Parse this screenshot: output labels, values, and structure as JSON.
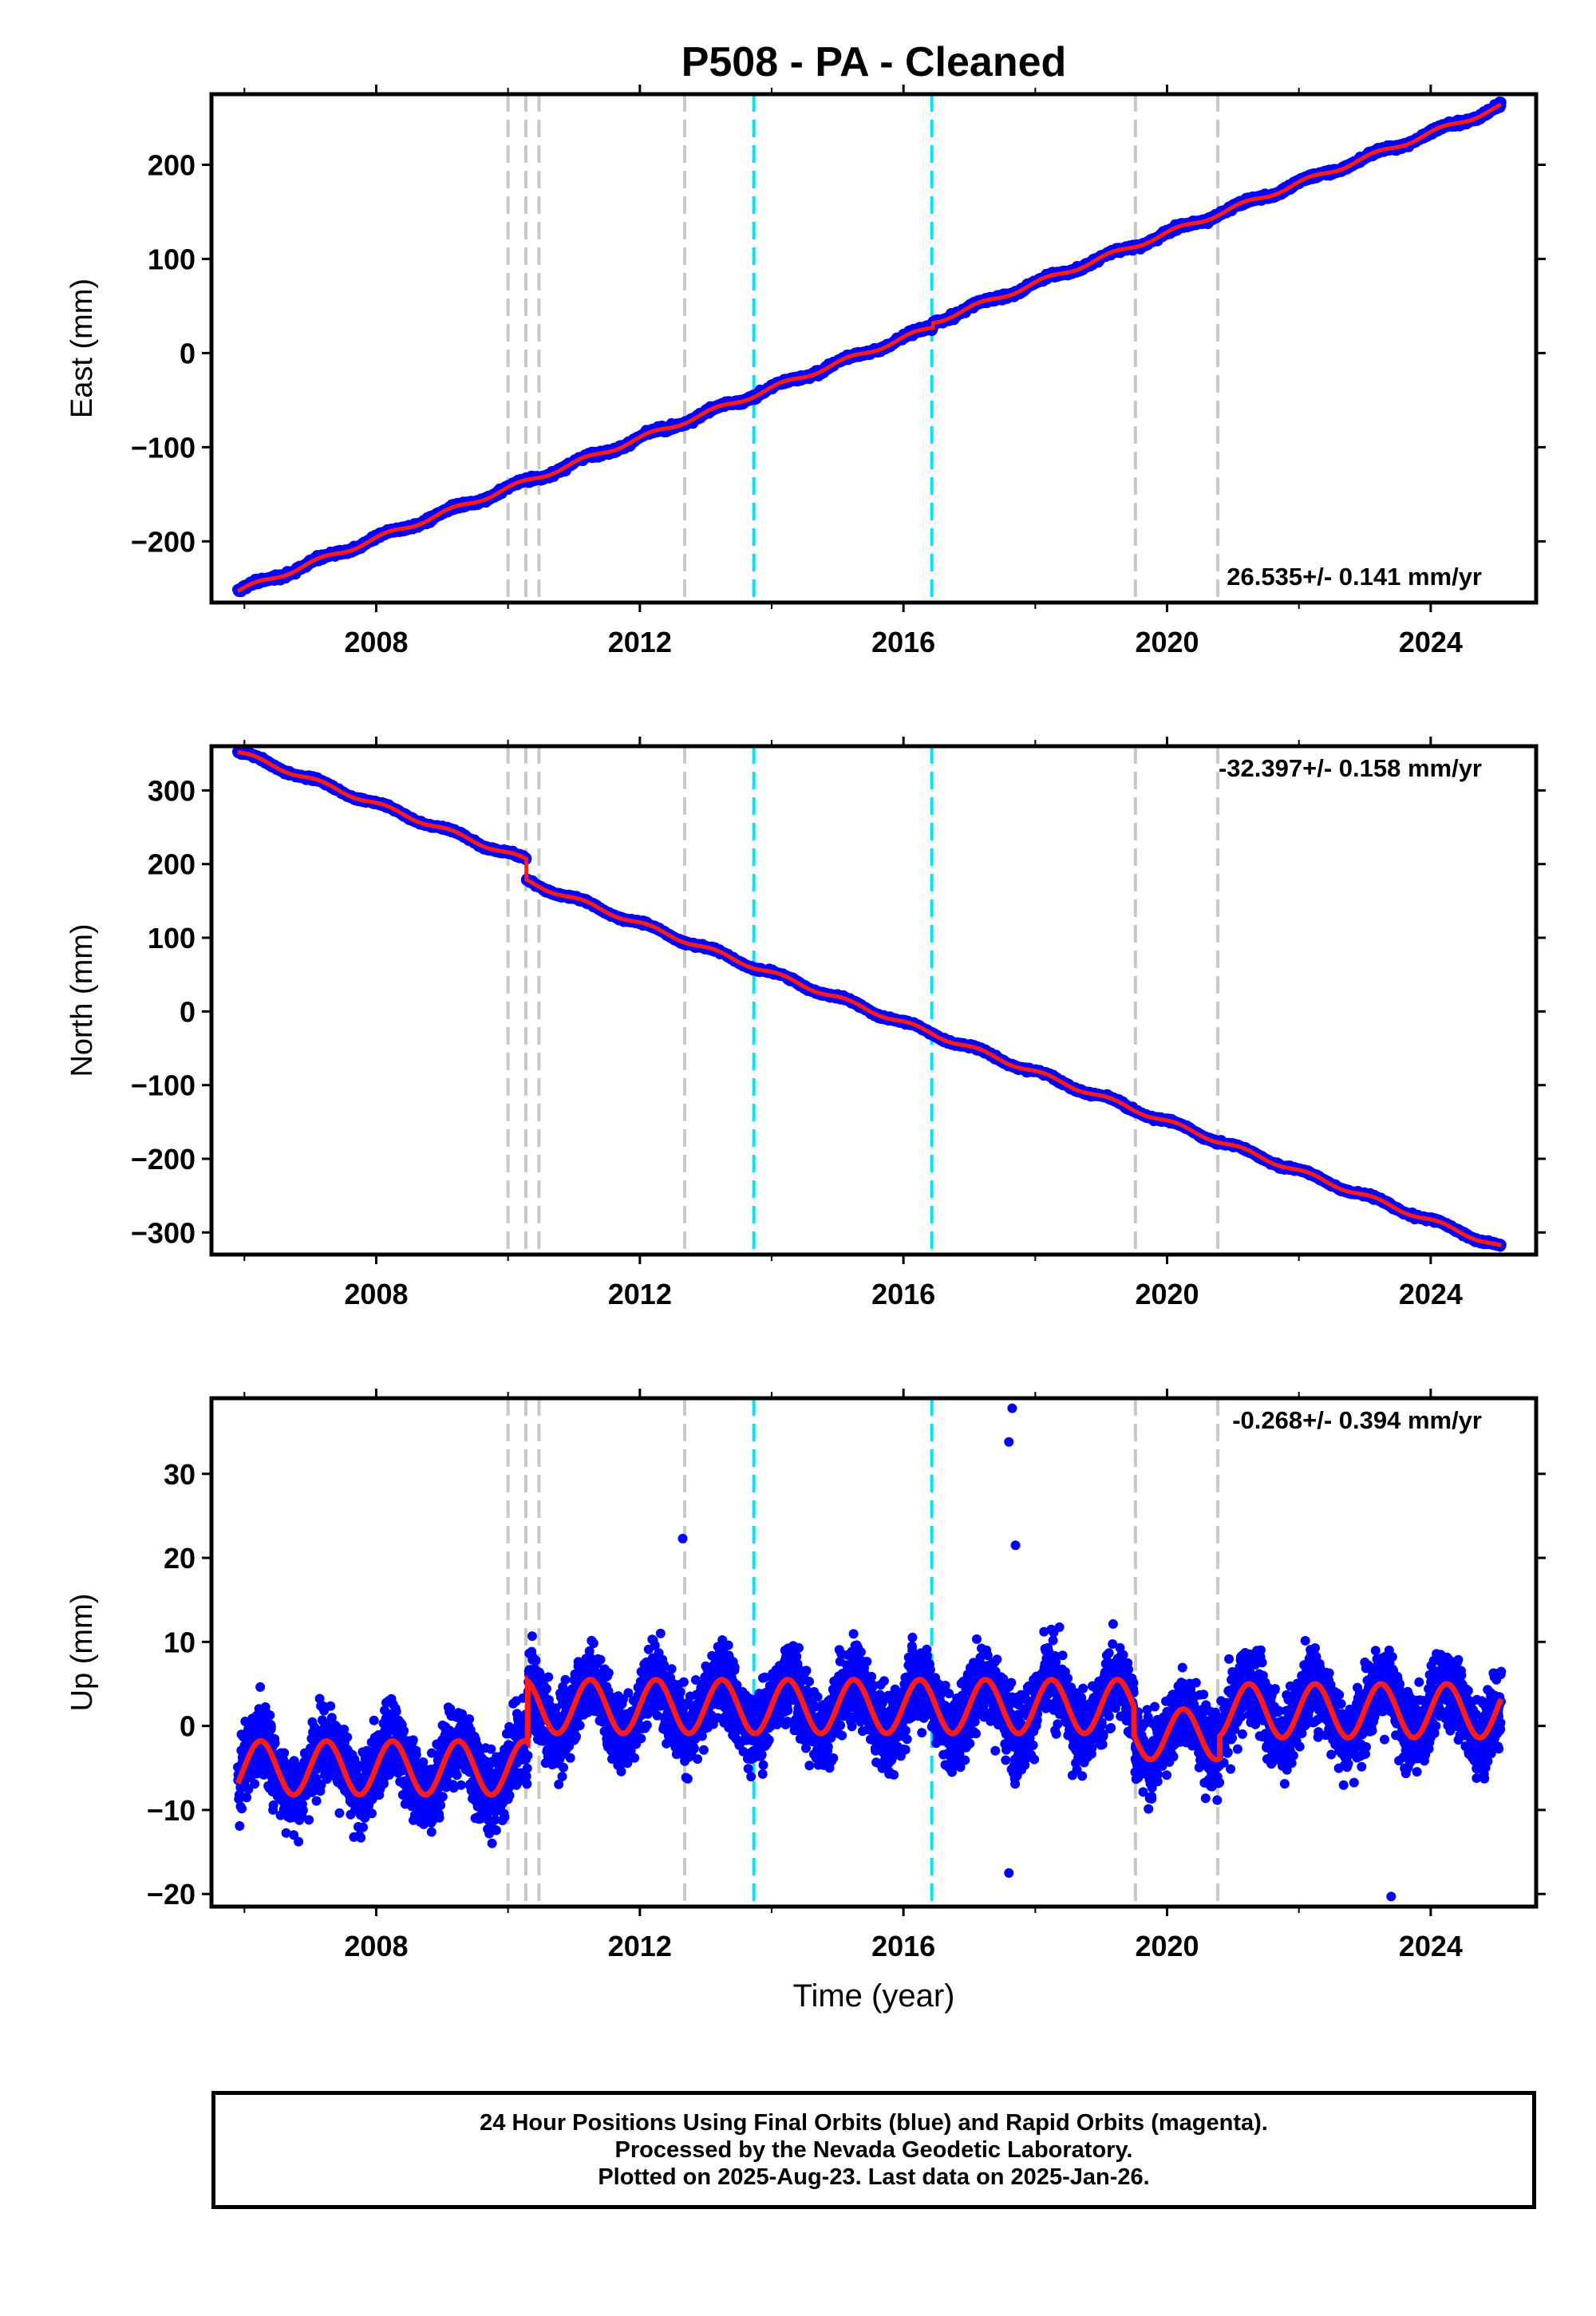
{
  "title": "P508  - PA - Cleaned",
  "colors": {
    "final_orbits": "#0000ff",
    "model_fit": "#ff1a1a",
    "equipment_change": "#c8c8c8",
    "earthquake": "#00e5ff",
    "frame": "#000000"
  },
  "chart_data": [
    {
      "type": "scatter",
      "name": "east",
      "ylabel": "East (mm)",
      "xlabel": "",
      "xlim": [
        2005.5,
        2025.6
      ],
      "ylim": [
        -265,
        275
      ],
      "xticks": [
        2008,
        2012,
        2016,
        2020,
        2024
      ],
      "yticks": [
        -200,
        -100,
        0,
        100,
        200
      ],
      "rate_label": "26.535+/- 0.141 mm/yr",
      "rate_position": "bottom-right",
      "start": [
        2005.9,
        -253
      ],
      "end": [
        2025.07,
        262
      ],
      "offsets": [
        [
          2016.45,
          5
        ]
      ],
      "annual_amplitude": 2.5,
      "noise": 1.8,
      "grid": false
    },
    {
      "type": "scatter",
      "name": "north",
      "ylabel": "North (mm)",
      "xlabel": "",
      "xlim": [
        2005.5,
        2025.6
      ],
      "ylim": [
        -330,
        360
      ],
      "xticks": [
        2008,
        2012,
        2016,
        2020,
        2024
      ],
      "yticks": [
        -300,
        -200,
        -100,
        0,
        100,
        200,
        300
      ],
      "rate_label": "-32.397+/- 0.158 mm/yr",
      "rate_position": "top-right",
      "start": [
        2005.9,
        352
      ],
      "end": [
        2025.07,
        -320
      ],
      "offsets": [
        [
          2010.28,
          -28
        ]
      ],
      "annual_amplitude": 3,
      "noise": 1.6,
      "grid": false
    },
    {
      "type": "scatter",
      "name": "up",
      "ylabel": "Up (mm)",
      "xlabel": "Time (year)",
      "xlim": [
        2005.5,
        2025.6
      ],
      "ylim": [
        -21.5,
        39
      ],
      "xticks": [
        2008,
        2012,
        2016,
        2020,
        2024
      ],
      "yticks": [
        -20,
        -10,
        0,
        10,
        20,
        30
      ],
      "rate_label": "-0.268+/- 0.394 mm/yr",
      "rate_position": "top-right",
      "model": [
        {
          "from": 2005.9,
          "to": 2010.3,
          "mean": -5.0,
          "amplitude": 3.2
        },
        {
          "from": 2010.3,
          "to": 2019.5,
          "mean": 2.3,
          "amplitude": 3.2
        },
        {
          "from": 2019.5,
          "to": 2020.8,
          "mean": -1.0,
          "amplitude": 3.0
        },
        {
          "from": 2020.8,
          "to": 2025.07,
          "mean": 1.8,
          "amplitude": 3.2
        }
      ],
      "noise": 3.2,
      "outliers": [
        [
          2017.65,
          37.8
        ],
        [
          2017.6,
          33.8
        ],
        [
          2017.7,
          21.5
        ],
        [
          2023.4,
          -20.3
        ],
        [
          2017.6,
          -17.5
        ],
        [
          2012.65,
          22.3
        ]
      ],
      "grid": false
    }
  ],
  "event_lines": {
    "equipment_change_years": [
      2010.0,
      2010.27,
      2010.47,
      2012.68,
      2019.52,
      2020.77
    ],
    "earthquake_years": [
      2013.73,
      2016.43
    ]
  },
  "footer": {
    "line1": "24 Hour Positions Using Final Orbits (blue) and Rapid Orbits (magenta).",
    "line2": "Processed by the Nevada Geodetic Laboratory.",
    "line3": "Plotted on 2025-Aug-23. Last data on 2025-Jan-26."
  }
}
